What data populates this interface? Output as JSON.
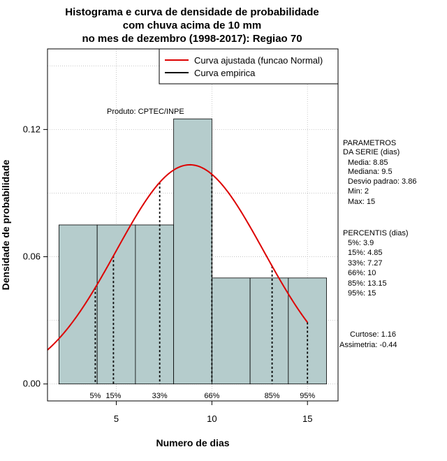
{
  "chart_data": {
    "type": "bar",
    "title_lines": [
      "Histograma e curva de densidade de probabilidade",
      "com chuva acima de 10 mm",
      "no mes de dezembro (1998-2017): Regiao 70"
    ],
    "xlabel": "Numero de dias",
    "ylabel": "Densidade de probabilidade",
    "xlim": [
      1.4,
      16.6
    ],
    "ylim": [
      -0.008,
      0.158
    ],
    "x_ticks": [
      5,
      10,
      15
    ],
    "y_ticks": [
      0.0,
      0.06,
      0.12
    ],
    "y_tick_labels": [
      "0.00",
      "0.06",
      "0.12"
    ],
    "grid": true,
    "bins": [
      {
        "x0": 2,
        "x1": 4,
        "density": 0.075
      },
      {
        "x0": 4,
        "x1": 6,
        "density": 0.075
      },
      {
        "x0": 6,
        "x1": 8,
        "density": 0.075
      },
      {
        "x0": 8,
        "x1": 10,
        "density": 0.125
      },
      {
        "x0": 10,
        "x1": 12,
        "density": 0.05
      },
      {
        "x0": 12,
        "x1": 14,
        "density": 0.05
      },
      {
        "x0": 14,
        "x1": 16,
        "density": 0.05
      }
    ],
    "bar_color": "#b5cccc",
    "normal_curve": {
      "mean": 8.85,
      "sd": 3.86,
      "from": 1.4,
      "to": 15,
      "color": "#dd0000"
    },
    "percentile_lines": [
      {
        "label": "5%",
        "x": 3.9
      },
      {
        "label": "15%",
        "x": 4.85
      },
      {
        "label": "33%",
        "x": 7.27
      },
      {
        "label": "66%",
        "x": 10
      },
      {
        "label": "85%",
        "x": 13.15
      },
      {
        "label": "95%",
        "x": 15
      }
    ],
    "legend": {
      "placement": "top-right",
      "entries": [
        {
          "label": "Curva ajustada (funcao Normal)",
          "color": "#dd0000"
        },
        {
          "label": "Curva empirica",
          "color": "#000000"
        }
      ]
    },
    "product_label": "Produto: CPTEC/INPE",
    "parameters": {
      "heading": [
        "PARAMETROS",
        "DA SERIE (dias)"
      ],
      "lines": [
        "Media: 8.85",
        "Mediana: 9.5",
        "Desvio padrao: 3.86",
        "Min: 2",
        "Max: 15"
      ]
    },
    "percentiles": {
      "heading": "PERCENTIS (dias)",
      "lines": [
        "5%: 3.9",
        "15%: 4.85",
        "33%: 7.27",
        "66%: 10",
        "85%: 13.15",
        "95%: 15"
      ]
    },
    "shape_stats": [
      "Curtose: 1.16",
      "Assimetria: -0.44"
    ]
  }
}
